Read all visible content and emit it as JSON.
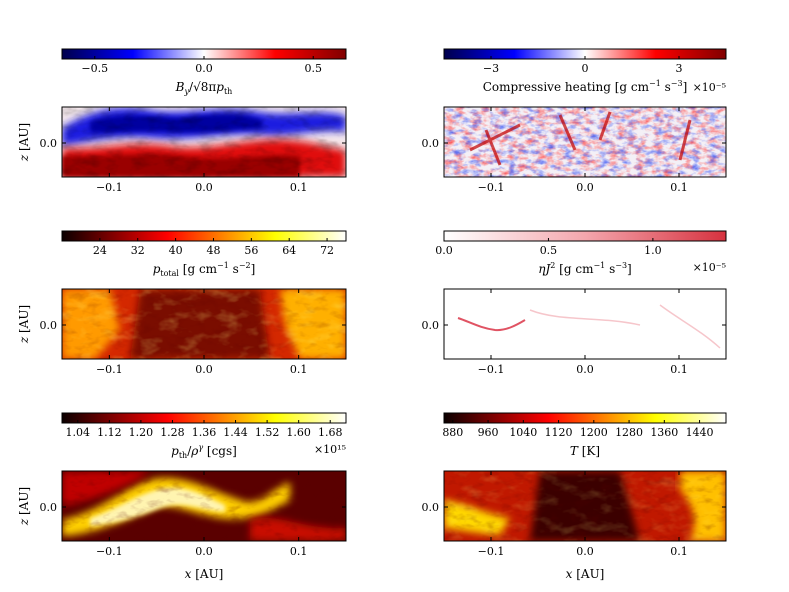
{
  "chart_data": [
    {
      "type": "heatmap",
      "title": "",
      "colormap": "seismic",
      "colorbar_label": "B_y/√8πp_th",
      "colorbar_range": [
        -0.65,
        0.65
      ],
      "colorbar_ticks": [
        -0.5,
        0.0,
        0.5
      ],
      "colorbar_tick_labels": [
        "−0.5",
        "0.0",
        "0.5"
      ],
      "multiplier": "",
      "xlim": [
        -0.15,
        0.15
      ],
      "x_ticks": [
        -0.1,
        0.0,
        0.1
      ],
      "x_tick_labels": [
        "−0.1",
        "0.0",
        "0.1"
      ],
      "y_ticks": [
        0.0
      ],
      "y_tick_labels": [
        "0.0"
      ],
      "ylabel": "z [AU]",
      "xlabel": ""
    },
    {
      "type": "heatmap",
      "title": "",
      "colormap": "seismic",
      "colorbar_label": "Compressive heating [g cm⁻¹ s⁻³]",
      "colorbar_range": [
        -4.5,
        4.5
      ],
      "colorbar_ticks": [
        -3,
        0,
        3
      ],
      "colorbar_tick_labels": [
        "−3",
        "0",
        "3"
      ],
      "multiplier": "×10⁻⁵",
      "xlim": [
        -0.15,
        0.15
      ],
      "x_ticks": [
        -0.1,
        0.0,
        0.1
      ],
      "x_tick_labels": [
        "−0.1",
        "0.0",
        "0.1"
      ],
      "y_ticks": [
        0.0
      ],
      "y_tick_labels": [
        "0.0"
      ],
      "ylabel": "",
      "xlabel": ""
    },
    {
      "type": "heatmap",
      "title": "",
      "colormap": "hot",
      "colorbar_label": "p_total [g cm⁻¹ s⁻²]",
      "colorbar_range": [
        16,
        76
      ],
      "colorbar_ticks": [
        24,
        32,
        40,
        48,
        56,
        64,
        72
      ],
      "colorbar_tick_labels": [
        "24",
        "32",
        "40",
        "48",
        "56",
        "64",
        "72"
      ],
      "multiplier": "",
      "xlim": [
        -0.15,
        0.15
      ],
      "x_ticks": [
        -0.1,
        0.0,
        0.1
      ],
      "x_tick_labels": [
        "−0.1",
        "0.0",
        "0.1"
      ],
      "y_ticks": [
        0.0
      ],
      "y_tick_labels": [
        "0.0"
      ],
      "ylabel": "z [AU]",
      "xlabel": ""
    },
    {
      "type": "heatmap",
      "title": "",
      "colormap": "reds",
      "colorbar_label": "ηJ² [g cm⁻¹ s⁻³]",
      "colorbar_range": [
        0.0,
        1.35
      ],
      "colorbar_ticks": [
        0.0,
        0.5,
        1.0
      ],
      "colorbar_tick_labels": [
        "0.0",
        "0.5",
        "1.0"
      ],
      "multiplier": "×10⁻⁵",
      "xlim": [
        -0.15,
        0.15
      ],
      "x_ticks": [
        -0.1,
        0.0,
        0.1
      ],
      "x_tick_labels": [
        "−0.1",
        "0.0",
        "0.1"
      ],
      "y_ticks": [
        0.0
      ],
      "y_tick_labels": [
        "0.0"
      ],
      "ylabel": "",
      "xlabel": ""
    },
    {
      "type": "heatmap",
      "title": "",
      "colormap": "hot",
      "colorbar_label": "p_th/ρ^γ [cgs]",
      "colorbar_range": [
        1.0,
        1.72
      ],
      "colorbar_ticks": [
        1.04,
        1.12,
        1.2,
        1.28,
        1.36,
        1.44,
        1.52,
        1.6,
        1.68
      ],
      "colorbar_tick_labels": [
        "1.04",
        "1.12",
        "1.20",
        "1.28",
        "1.36",
        "1.44",
        "1.52",
        "1.60",
        "1.68"
      ],
      "multiplier": "×10¹⁵",
      "xlim": [
        -0.15,
        0.15
      ],
      "x_ticks": [
        -0.1,
        0.0,
        0.1
      ],
      "x_tick_labels": [
        "−0.1",
        "0.0",
        "0.1"
      ],
      "y_ticks": [
        0.0
      ],
      "y_tick_labels": [
        "0.0"
      ],
      "ylabel": "z [AU]",
      "xlabel": "x [AU]"
    },
    {
      "type": "heatmap",
      "title": "",
      "colormap": "hot",
      "colorbar_label": "T [K]",
      "colorbar_range": [
        860,
        1500
      ],
      "colorbar_ticks": [
        880,
        960,
        1040,
        1120,
        1200,
        1280,
        1360,
        1440
      ],
      "colorbar_tick_labels": [
        "880",
        "960",
        "1040",
        "1120",
        "1200",
        "1280",
        "1360",
        "1440"
      ],
      "multiplier": "",
      "xlim": [
        -0.15,
        0.15
      ],
      "x_ticks": [
        -0.1,
        0.0,
        0.1
      ],
      "x_tick_labels": [
        "−0.1",
        "0.0",
        "0.1"
      ],
      "y_ticks": [
        0.0
      ],
      "y_tick_labels": [
        "0.0"
      ],
      "ylabel": "",
      "xlabel": "x [AU]"
    }
  ]
}
